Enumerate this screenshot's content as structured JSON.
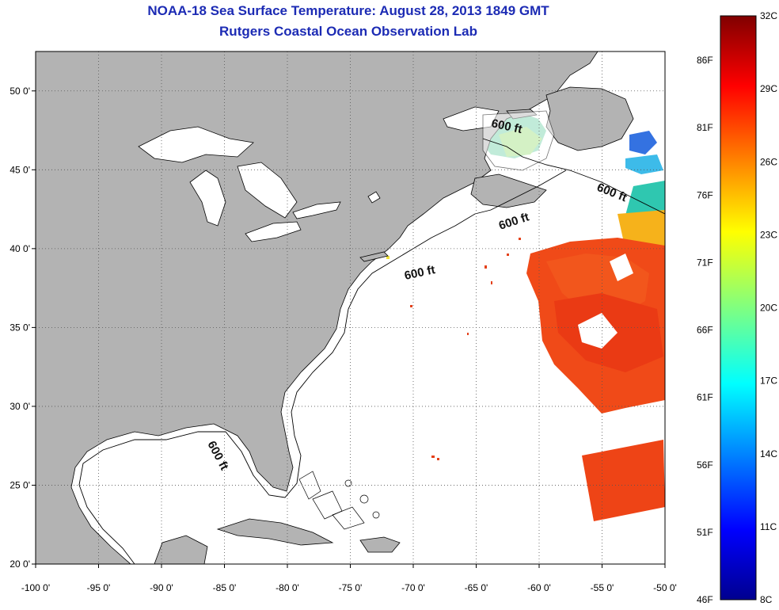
{
  "title": "NOAA-18 Sea Surface Temperature:  August 28, 2013 1849 GMT",
  "subtitle": "Rutgers Coastal Ocean Observation Lab",
  "map": {
    "lon_range": [
      -100,
      -50
    ],
    "lat_range": [
      20,
      52.5
    ],
    "lon_ticks": [
      {
        "value": -100,
        "label": "-100 0'"
      },
      {
        "value": -95,
        "label": "-95 0'"
      },
      {
        "value": -90,
        "label": "-90 0'"
      },
      {
        "value": -85,
        "label": "-85 0'"
      },
      {
        "value": -80,
        "label": "-80 0'"
      },
      {
        "value": -75,
        "label": "-75 0'"
      },
      {
        "value": -70,
        "label": "-70 0'"
      },
      {
        "value": -65,
        "label": "-65 0'"
      },
      {
        "value": -60,
        "label": "-60 0'"
      },
      {
        "value": -55,
        "label": "-55 0'"
      },
      {
        "value": -50,
        "label": "-50 0'"
      }
    ],
    "lat_ticks": [
      {
        "value": 20,
        "label": "20 0'"
      },
      {
        "value": 25,
        "label": "25 0'"
      },
      {
        "value": 30,
        "label": "30 0'"
      },
      {
        "value": 35,
        "label": "35 0'"
      },
      {
        "value": 40,
        "label": "40 0'"
      },
      {
        "value": 45,
        "label": "45 0'"
      },
      {
        "value": 50,
        "label": "50 0'"
      }
    ],
    "grid": true,
    "contour_label": "600 ft",
    "colors": {
      "land": "#b3b3b3",
      "ocean": "#ffffff",
      "grid": "#555555",
      "outline": "#000000"
    }
  },
  "colorbar": {
    "celsius_labels": [
      "32C",
      "29C",
      "26C",
      "23C",
      "20C",
      "17C",
      "14C",
      "11C",
      "8C"
    ],
    "fahrenheit_labels": [
      "86F",
      "81F",
      "76F",
      "71F",
      "66F",
      "61F",
      "56F",
      "51F",
      "46F"
    ],
    "range_c": [
      8,
      32
    ],
    "range_f": [
      46,
      90
    ],
    "colormap": "jet"
  }
}
